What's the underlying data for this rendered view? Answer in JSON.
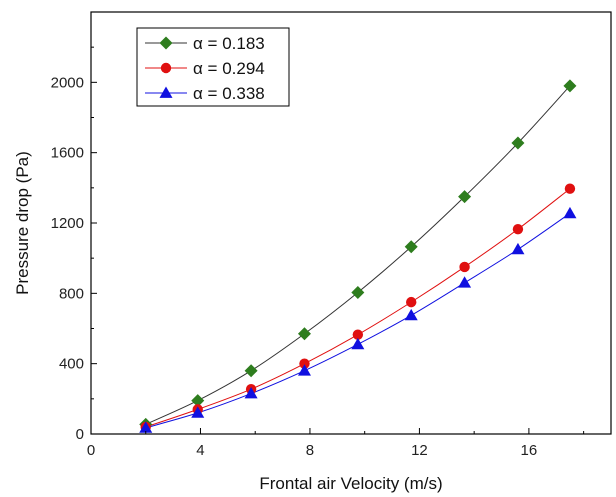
{
  "chart_data": {
    "type": "line",
    "title": "",
    "xlabel": "Frontal air Velocity (m/s)",
    "ylabel": "Pressure drop (Pa)",
    "xlim": [
      0,
      19
    ],
    "ylim": [
      0,
      2400
    ],
    "xticks": [
      0,
      4,
      8,
      12,
      16
    ],
    "yticks": [
      0,
      400,
      800,
      1200,
      1600,
      2000
    ],
    "grid": false,
    "legend_position": "top-left",
    "series": [
      {
        "name": "α = 0.183",
        "color": "#2e7d1e",
        "marker": "diamond",
        "x": [
          2.0,
          3.9,
          5.85,
          7.8,
          9.75,
          11.7,
          13.65,
          15.6,
          17.5
        ],
        "y": [
          55,
          190,
          360,
          570,
          805,
          1065,
          1350,
          1655,
          1980
        ]
      },
      {
        "name": "α = 0.294",
        "color": "#e01010",
        "marker": "circle",
        "x": [
          2.0,
          3.9,
          5.85,
          7.8,
          9.75,
          11.7,
          13.65,
          15.6,
          17.5
        ],
        "y": [
          40,
          140,
          255,
          400,
          565,
          750,
          950,
          1165,
          1395
        ]
      },
      {
        "name": "α = 0.338",
        "color": "#1010e0",
        "marker": "triangle",
        "x": [
          2.0,
          3.9,
          5.85,
          7.8,
          9.75,
          11.7,
          13.65,
          15.6,
          17.5
        ],
        "y": [
          35,
          120,
          230,
          360,
          510,
          675,
          860,
          1050,
          1255
        ]
      }
    ]
  }
}
